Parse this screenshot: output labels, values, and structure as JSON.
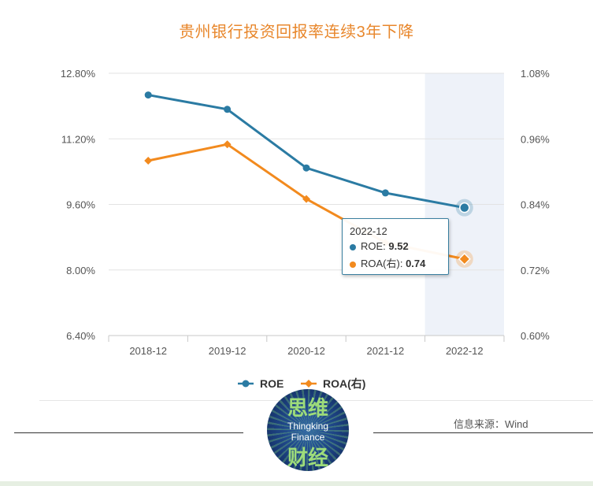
{
  "title": "贵州银行投资回报率连续3年下降",
  "source": "信息来源：Wind",
  "logo": {
    "text_top": "思维",
    "text_line1": "Thingking",
    "text_line2": "Finance",
    "text_bottom": "财经"
  },
  "colors": {
    "roe": "#2b7ba3",
    "roa": "#f28a1e",
    "title": "#e8872c"
  },
  "chart_data": {
    "type": "line",
    "title": "贵州银行投资回报率连续3年下降",
    "categories": [
      "2018-12",
      "2019-12",
      "2020-12",
      "2021-12",
      "2022-12"
    ],
    "left_axis": {
      "ticks": [
        "12.80%",
        "11.20%",
        "9.60%",
        "8.00%",
        "6.40%"
      ],
      "min": 6.4,
      "max": 12.8
    },
    "right_axis": {
      "ticks": [
        "1.08%",
        "0.96%",
        "0.84%",
        "0.72%",
        "0.60%"
      ],
      "min": 0.6,
      "max": 1.08
    },
    "series": [
      {
        "name": "ROE",
        "axis": "left",
        "values": [
          12.27,
          11.92,
          10.49,
          9.88,
          9.52
        ]
      },
      {
        "name": "ROA(右)",
        "axis": "right",
        "values": [
          0.92,
          0.95,
          0.85,
          0.77,
          0.74
        ]
      }
    ],
    "legend": [
      "ROE",
      "ROA(右)"
    ],
    "legend_position": "bottom",
    "highlighted_category": "2022-12",
    "grid": true
  },
  "tooltip": {
    "category": "2022-12",
    "roe_label": "ROE",
    "roe_value": "9.52",
    "roa_label": "ROA(右)",
    "roa_value": "0.74"
  }
}
